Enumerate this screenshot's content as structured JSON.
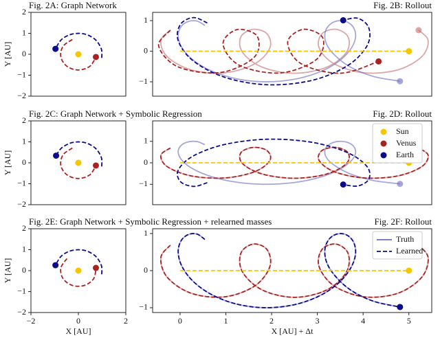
{
  "chart_data": [
    {
      "type": "line",
      "title": "Fig. 2A: Graph Network",
      "ylabel": "Y [AU]",
      "xlim": [
        -2,
        2
      ],
      "ylim": [
        -2,
        2
      ],
      "yticks": [
        {
          "value": -2,
          "label": "−2"
        },
        {
          "value": -1,
          "label": "−1"
        },
        0,
        1,
        2
      ],
      "series": [
        {
          "color": "#a82222",
          "dash": true,
          "alpha": 1,
          "x": [
            -0.257,
            -0.65,
            -0.739,
            -0.482,
            0,
            0.482,
            0.739
          ],
          "values": [
            0.705,
            0.375,
            -0.13,
            -0.575,
            -0.75,
            -0.575,
            -0.13
          ]
        },
        {
          "color": "#0b0b8c",
          "dash": true,
          "alpha": 1,
          "x": [
            0.985,
            0.966,
            0.707,
            0.259,
            -0.259,
            -0.707,
            -0.966
          ],
          "values": [
            -0.174,
            0.259,
            0.707,
            0.966,
            0.966,
            0.707,
            0.259
          ]
        },
        {
          "color": "#f7c600",
          "dash": true,
          "alpha": 1,
          "x": [
            0
          ],
          "values": [
            0
          ]
        }
      ]
    },
    {
      "type": "line",
      "title": "Fig. 2B: Rollout",
      "xlim": [
        -0.6,
        5.5
      ],
      "ylim": [
        -1.47,
        1.27
      ],
      "yticks": [
        {
          "value": -1,
          "label": "−1"
        },
        0,
        1
      ],
      "series": [
        {
          "color": "#c46b6b",
          "dash": false,
          "alpha": 0.6,
          "x": [
            -0.212,
            -0.42,
            -0.281,
            0.243,
            0.976,
            1.632,
            1.962,
            1.9,
            1.596,
            1.329,
            1.364,
            1.795,
            2.5,
            3.203,
            3.636,
            3.671,
            3.405,
            3.1,
            3.038,
            3.368,
            4.024,
            4.757,
            5.281,
            5.421,
            5.213
          ],
          "values": [
            0.688,
            0.352,
            -0.178,
            -0.61,
            -0.706,
            -0.413,
            0.107,
            0.569,
            0.716,
            0.47,
            -0.035,
            -0.521,
            -0.72,
            -0.523,
            -0.036,
            0.469,
            0.716,
            0.569,
            0.108,
            -0.413,
            -0.706,
            -0.611,
            -0.179,
            0.351,
            0.688
          ]
        },
        {
          "color": "#6b6bbf",
          "dash": false,
          "alpha": 0.6,
          "x": [
            0.54,
            0.37,
            0.173,
            0.016,
            -0.041,
            0.047,
            0.297,
            0.701,
            1.235,
            1.838,
            2.445,
            2.995,
            3.427,
            3.707,
            3.83,
            3.804,
            3.667,
            3.47,
            3.283,
            3.17,
            3.197,
            3.384,
            3.735,
            4.229,
            4.806
          ],
          "values": [
            0.841,
            0.987,
            0.97,
            0.794,
            0.487,
            0.1,
            -0.303,
            -0.654,
            -0.902,
            -0.999,
            -0.932,
            -0.711,
            -0.374,
            0.025,
            0.408,
            0.734,
            0.943,
            0.997,
            0.884,
            0.616,
            0.245,
            -0.137,
            -0.53,
            -0.827,
            -0.981
          ]
        },
        {
          "color": "#a82222",
          "dash": true,
          "alpha": 1,
          "x": [
            -0.212,
            -0.468,
            -0.045,
            0.873,
            1.615,
            1.687,
            1.243,
            0.939,
            1.296,
            2.191,
            2.979,
            3.119,
            2.699,
            2.352,
            2.642,
            3.51,
            4.338
          ],
          "values": [
            0.688,
            0.171,
            -0.511,
            -0.698,
            -0.205,
            0.487,
            0.706,
            0.238,
            -0.46,
            -0.711,
            -0.271,
            0.433,
            0.716,
            0.303,
            -0.405,
            -0.719,
            -0.334
          ]
        },
        {
          "color": "#0b0b8c",
          "dash": true,
          "alpha": 1,
          "x": [
            0.594,
            0.296,
            0.011,
            -0.043,
            0.276,
            0.97,
            1.91,
            2.883,
            3.66,
            4.086,
            4.125,
            3.885,
            3.565
          ],
          "values": [
            0.925,
            1.099,
            0.882,
            0.352,
            -0.303,
            -0.85,
            -1.097,
            -0.953,
            -0.472,
            0.177,
            0.763,
            1.078,
            1.011
          ]
        },
        {
          "color": "#f7c600",
          "dash": true,
          "alpha": 1,
          "x": [
            0,
            5
          ],
          "values": [
            0,
            0
          ]
        }
      ]
    },
    {
      "type": "line",
      "title": "Fig. 2C: Graph Network + Symbolic Regression",
      "ylabel": "Y [AU]",
      "xlim": [
        -2,
        2
      ],
      "ylim": [
        -2,
        2
      ],
      "yticks": [
        {
          "value": -2,
          "label": "−2"
        },
        {
          "value": -1,
          "label": "−1"
        },
        0,
        1,
        2
      ],
      "series": [
        {
          "color": "#a82222",
          "dash": true,
          "alpha": 1,
          "x": [
            -0.257,
            -0.65,
            -0.739,
            -0.482,
            0,
            0.482,
            0.739
          ],
          "values": [
            0.705,
            0.375,
            -0.13,
            -0.575,
            -0.75,
            -0.575,
            -0.13
          ]
        },
        {
          "color": "#0b0b8c",
          "dash": true,
          "alpha": 1,
          "x": [
            0.985,
            0.966,
            0.707,
            0.259,
            -0.259,
            -0.707,
            -0.94
          ],
          "values": [
            -0.174,
            0.259,
            0.707,
            0.966,
            0.966,
            0.707,
            0.342
          ]
        },
        {
          "color": "#f7c600",
          "dash": true,
          "alpha": 1,
          "x": [
            0
          ],
          "values": [
            0
          ]
        }
      ]
    },
    {
      "type": "line",
      "title": "Fig. 2D: Rollout",
      "xlim": [
        -0.6,
        5.5
      ],
      "ylim": [
        -1.95,
        1.95
      ],
      "yticks": [
        {
          "value": -1,
          "label": "−1"
        },
        0,
        1
      ],
      "legend": "upper right",
      "legend_entries": [
        {
          "label": "Sun",
          "color": "#f7c600"
        },
        {
          "label": "Venus",
          "color": "#a82222"
        },
        {
          "label": "Earth",
          "color": "#0b0b8c"
        }
      ],
      "series": [
        {
          "color": "#c46b6b",
          "dash": false,
          "alpha": 0.6,
          "x": [
            -0.212,
            -0.42,
            -0.281,
            0.243,
            0.976,
            1.632,
            1.962,
            1.9,
            1.596,
            1.329,
            1.364,
            1.795,
            2.5,
            3.203,
            3.636,
            3.671,
            3.405,
            3.1,
            3.038,
            3.368,
            4.024,
            4.757,
            5.281,
            5.421,
            5.213
          ],
          "values": [
            0.688,
            0.352,
            -0.178,
            -0.61,
            -0.706,
            -0.413,
            0.107,
            0.569,
            0.716,
            0.47,
            -0.035,
            -0.521,
            -0.72,
            -0.523,
            -0.036,
            0.469,
            0.716,
            0.569,
            0.108,
            -0.413,
            -0.706,
            -0.611,
            -0.179,
            0.351,
            0.688
          ]
        },
        {
          "color": "#6b6bbf",
          "dash": false,
          "alpha": 0.6,
          "x": [
            0.54,
            0.37,
            0.173,
            0.016,
            -0.041,
            0.047,
            0.297,
            0.701,
            1.235,
            1.838,
            2.445,
            2.995,
            3.427,
            3.707,
            3.83,
            3.804,
            3.667,
            3.47,
            3.283,
            3.17,
            3.197,
            3.384,
            3.735,
            4.229,
            4.806
          ],
          "values": [
            0.841,
            0.987,
            0.97,
            0.794,
            0.487,
            0.1,
            -0.303,
            -0.654,
            -0.902,
            -0.999,
            -0.932,
            -0.711,
            -0.374,
            0.025,
            0.408,
            0.734,
            0.943,
            0.997,
            0.884,
            0.616,
            0.245,
            -0.137,
            -0.53,
            -0.827,
            -0.981
          ]
        },
        {
          "color": "#a82222",
          "dash": true,
          "alpha": 1,
          "x": [
            -0.212,
            -0.42,
            -0.281,
            0.243,
            0.976,
            1.632,
            1.962,
            1.9,
            1.596,
            1.329,
            1.364,
            1.795,
            2.5,
            3.203,
            3.636,
            3.671,
            3.405,
            3.1,
            3.038,
            3.368,
            4.024,
            4.757,
            5.281,
            5.421,
            5.213
          ],
          "values": [
            0.688,
            0.352,
            -0.178,
            -0.61,
            -0.706,
            -0.413,
            0.107,
            0.569,
            0.716,
            0.47,
            -0.035,
            -0.521,
            -0.72,
            -0.523,
            -0.036,
            0.469,
            0.716,
            0.569,
            0.108,
            -0.413,
            -0.706,
            -0.611,
            -0.179,
            0.351,
            0.688
          ]
        },
        {
          "color": "#0b0b8c",
          "dash": true,
          "alpha": 1,
          "x": [
            0.594,
            0.296,
            0.011,
            -0.043,
            0.276,
            0.97,
            1.91,
            2.883,
            3.66,
            4.086,
            4.125,
            3.885,
            3.565
          ],
          "values": [
            -0.925,
            -1.099,
            -0.882,
            -0.352,
            0.303,
            0.85,
            1.097,
            0.953,
            0.472,
            -0.177,
            -0.763,
            -1.078,
            -1.011
          ]
        },
        {
          "color": "#f7c600",
          "dash": true,
          "alpha": 1,
          "x": [
            0,
            5
          ],
          "values": [
            0,
            0
          ]
        }
      ]
    },
    {
      "type": "line",
      "title": "Fig. 2E: Graph Network + Symbolic Regression + relearned masses",
      "ylabel": "Y [AU]",
      "xlabel": "X [AU]",
      "xlim": [
        -2,
        2
      ],
      "ylim": [
        -2,
        2
      ],
      "xticks": [
        {
          "value": -2,
          "label": "−2"
        },
        0,
        2
      ],
      "yticks": [
        {
          "value": -2,
          "label": "−2"
        },
        {
          "value": -1,
          "label": "−1"
        },
        0,
        1,
        2
      ],
      "series": [
        {
          "color": "#a82222",
          "dash": true,
          "alpha": 1,
          "x": [
            -0.482,
            -0.739,
            -0.65,
            -0.257,
            0.257,
            0.65,
            0.739
          ],
          "values": [
            0.575,
            0.13,
            -0.375,
            -0.705,
            -0.705,
            -0.375,
            0.13
          ]
        },
        {
          "color": "#0b0b8c",
          "dash": true,
          "alpha": 1,
          "x": [
            0.985,
            0.966,
            0.707,
            0.259,
            -0.259,
            -0.707,
            -0.966
          ],
          "values": [
            -0.174,
            0.259,
            0.707,
            0.966,
            0.966,
            0.707,
            0.259
          ]
        },
        {
          "color": "#f7c600",
          "dash": true,
          "alpha": 1,
          "x": [
            0
          ],
          "values": [
            0
          ]
        }
      ]
    },
    {
      "type": "line",
      "title": "Fig. 2F: Rollout",
      "xlabel": "X [AU] + Δt",
      "xlim": [
        -0.6,
        5.5
      ],
      "ylim": [
        -1.13,
        1.13
      ],
      "xticks": [
        0,
        1,
        2,
        3,
        4,
        5
      ],
      "yticks": [
        {
          "value": -1,
          "label": "−1"
        },
        0,
        1
      ],
      "legend": "upper right",
      "legend_entries": [
        {
          "label": "Truth",
          "color": "#6b6bbf",
          "dash": false
        },
        {
          "label": "Learned",
          "color": "#0b0b8c",
          "dash": true
        }
      ],
      "series": [
        {
          "color": "#c46b6b",
          "dash": false,
          "alpha": 0.6,
          "x": [
            -0.212,
            -0.42,
            -0.281,
            0.243,
            0.976,
            1.632,
            1.962,
            1.9,
            1.596,
            1.329,
            1.364,
            1.795,
            2.5,
            3.203,
            3.636,
            3.671,
            3.405,
            3.1,
            3.038,
            3.368,
            4.024,
            4.757,
            5.281,
            5.421,
            5.213
          ],
          "values": [
            0.688,
            0.352,
            -0.178,
            -0.61,
            -0.706,
            -0.413,
            0.107,
            0.569,
            0.716,
            0.47,
            -0.035,
            -0.521,
            -0.72,
            -0.523,
            -0.036,
            0.469,
            0.716,
            0.569,
            0.108,
            -0.413,
            -0.706,
            -0.611,
            -0.179,
            0.351,
            0.688
          ]
        },
        {
          "color": "#6b6bbf",
          "dash": false,
          "alpha": 0.6,
          "x": [
            0.54,
            0.37,
            0.173,
            0.016,
            -0.041,
            0.047,
            0.297,
            0.701,
            1.235,
            1.838,
            2.445,
            2.995,
            3.427,
            3.707,
            3.83,
            3.804,
            3.667,
            3.47,
            3.283,
            3.17,
            3.197,
            3.384,
            3.735,
            4.229,
            4.806
          ],
          "values": [
            0.841,
            0.987,
            0.97,
            0.794,
            0.487,
            0.1,
            -0.303,
            -0.654,
            -0.902,
            -0.999,
            -0.932,
            -0.711,
            -0.374,
            0.025,
            0.408,
            0.734,
            0.943,
            0.997,
            0.884,
            0.616,
            0.245,
            -0.137,
            -0.53,
            -0.827,
            -0.981
          ]
        },
        {
          "color": "#a82222",
          "dash": true,
          "alpha": 1,
          "x": [
            -0.212,
            -0.42,
            -0.281,
            0.243,
            0.976,
            1.632,
            1.962,
            1.9,
            1.596,
            1.329,
            1.364,
            1.795,
            2.5,
            3.203,
            3.636,
            3.671,
            3.405,
            3.1,
            3.038,
            3.368,
            4.024,
            4.757,
            5.281,
            5.421,
            5.213
          ],
          "values": [
            0.688,
            0.352,
            -0.178,
            -0.61,
            -0.706,
            -0.413,
            0.107,
            0.569,
            0.716,
            0.47,
            -0.035,
            -0.521,
            -0.72,
            -0.523,
            -0.036,
            0.469,
            0.716,
            0.569,
            0.108,
            -0.413,
            -0.706,
            -0.611,
            -0.179,
            0.351,
            0.688
          ]
        },
        {
          "color": "#0b0b8c",
          "dash": true,
          "alpha": 1,
          "x": [
            0.54,
            0.37,
            0.173,
            0.016,
            -0.041,
            0.047,
            0.297,
            0.701,
            1.235,
            1.838,
            2.445,
            2.995,
            3.427,
            3.707,
            3.83,
            3.804,
            3.667,
            3.47,
            3.283,
            3.17,
            3.197,
            3.384,
            3.735,
            4.229,
            4.806
          ],
          "values": [
            0.841,
            0.987,
            0.97,
            0.794,
            0.487,
            0.1,
            -0.303,
            -0.654,
            -0.902,
            -0.999,
            -0.932,
            -0.711,
            -0.374,
            0.025,
            0.408,
            0.734,
            0.943,
            0.997,
            0.884,
            0.616,
            0.245,
            -0.137,
            -0.53,
            -0.827,
            -0.981
          ]
        },
        {
          "color": "#f7c600",
          "dash": true,
          "alpha": 1,
          "x": [
            0,
            5
          ],
          "values": [
            0,
            0
          ]
        }
      ]
    }
  ]
}
